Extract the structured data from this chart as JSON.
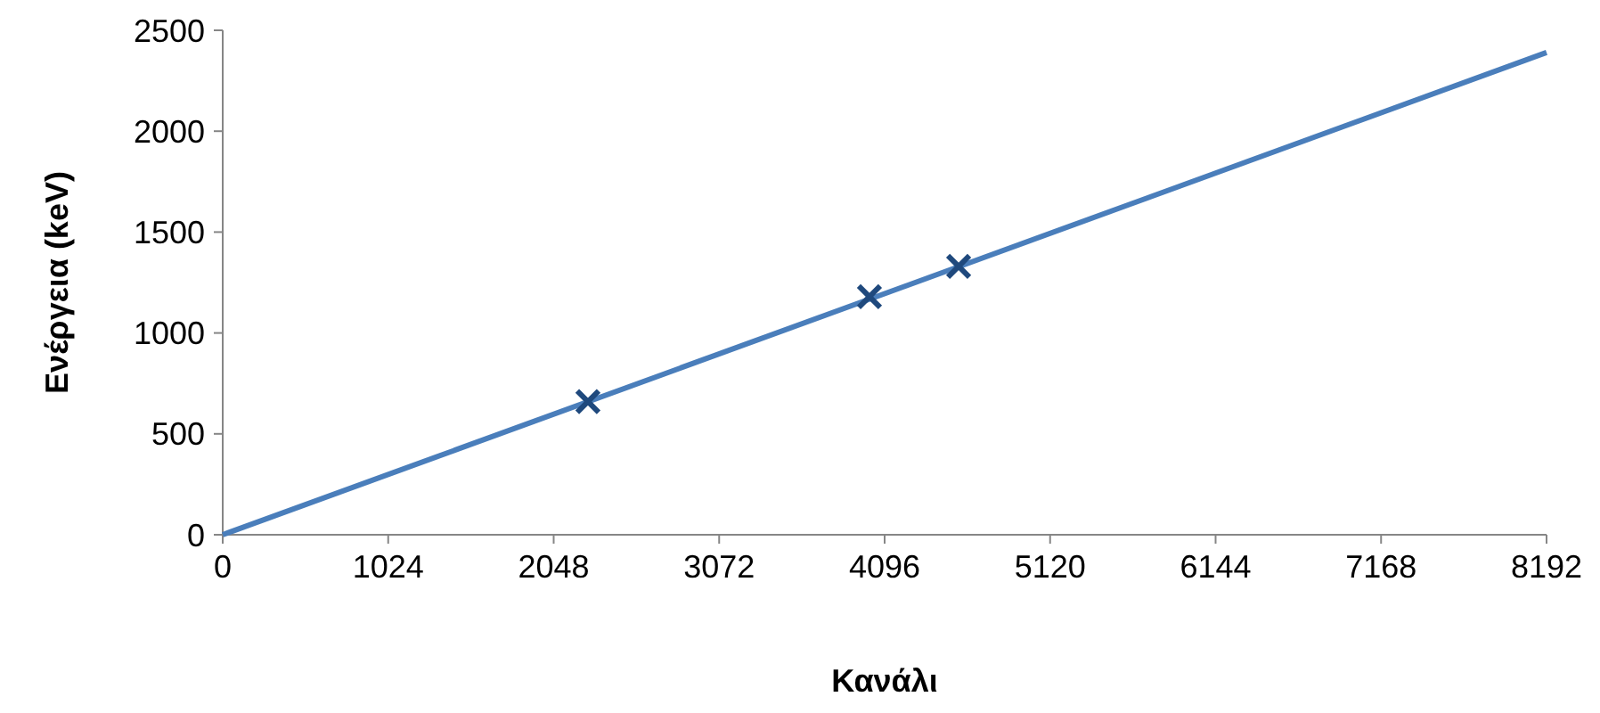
{
  "chart_data": {
    "type": "scatter",
    "xlabel": "Κανάλι",
    "ylabel": "Ενέργεια (keV)",
    "xlim": [
      0,
      8192
    ],
    "xticks": [
      0,
      1024,
      2048,
      3072,
      4096,
      5120,
      6144,
      7168,
      8192
    ],
    "ylim": [
      0,
      2500
    ],
    "yticks": [
      0,
      500,
      1000,
      1500,
      2000,
      2500
    ],
    "grid": false,
    "series": [
      {
        "type": "line",
        "color": "#4a7ebb",
        "x": [
          0,
          8192
        ],
        "values": [
          0,
          2390
        ],
        "marker": "none",
        "line_style": "solid"
      },
      {
        "type": "scatter",
        "color": "#1f497d",
        "x": [
          2260,
          4002,
          4554
        ],
        "values": [
          660,
          1180,
          1330
        ],
        "marker": "cross"
      }
    ]
  }
}
